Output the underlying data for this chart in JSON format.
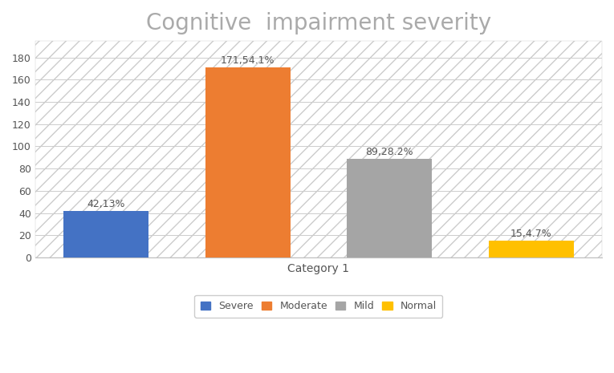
{
  "title": "Cognitive  impairment severity",
  "xlabel": "Category 1",
  "categories": [
    "Severe",
    "Moderate",
    "Mild",
    "Normal"
  ],
  "values": [
    42,
    171,
    89,
    15
  ],
  "labels": [
    "42,13%",
    "171,54.1%",
    "89,28.2%",
    "15,4.7%"
  ],
  "bar_colors": [
    "#4472c4",
    "#ed7d31",
    "#a5a5a5",
    "#ffc000"
  ],
  "ylim": [
    0,
    195
  ],
  "yticks": [
    0,
    20,
    40,
    60,
    80,
    100,
    120,
    140,
    160,
    180
  ],
  "title_fontsize": 20,
  "label_fontsize": 9,
  "axis_label_fontsize": 10,
  "legend_fontsize": 9,
  "title_color": "#aaaaaa",
  "label_color": "#555555",
  "background_color": "#ffffff",
  "grid_color": "#cccccc"
}
